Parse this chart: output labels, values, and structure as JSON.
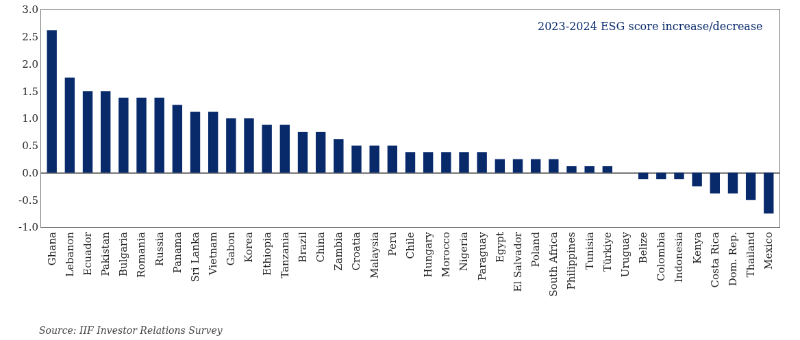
{
  "chart_data": {
    "type": "bar",
    "categories": [
      "Ghana",
      "Lebanon",
      "Ecuador",
      "Pakistan",
      "Bulgaria",
      "Romania",
      "Russia",
      "Panama",
      "Sri Lanka",
      "Vietnam",
      "Gabon",
      "Korea",
      "Ethiopia",
      "Tanzania",
      "Brazil",
      "China",
      "Zambia",
      "Croatia",
      "Malaysia",
      "Peru",
      "Chile",
      "Hungary",
      "Morocco",
      "Nigeria",
      "Paraguay",
      "Egypt",
      "El Salvador",
      "Poland",
      "South Africa",
      "Philippines",
      "Tunisia",
      "Türkiye",
      "Uruguay",
      "Belize",
      "Colombia",
      "Indonesia",
      "Kenya",
      "Costa Rica",
      "Dom. Rep.",
      "Thailand",
      "Mexico"
    ],
    "values": [
      2.62,
      1.75,
      1.5,
      1.5,
      1.38,
      1.38,
      1.38,
      1.25,
      1.12,
      1.12,
      1.0,
      1.0,
      0.88,
      0.88,
      0.75,
      0.75,
      0.62,
      0.5,
      0.5,
      0.5,
      0.38,
      0.38,
      0.38,
      0.38,
      0.38,
      0.25,
      0.25,
      0.25,
      0.25,
      0.12,
      0.12,
      0.12,
      0,
      -0.12,
      -0.12,
      -0.12,
      -0.25,
      -0.38,
      -0.38,
      -0.5,
      -0.75
    ],
    "color": "#082a6b",
    "ylim": [
      -1.0,
      3.0
    ],
    "yticks": [
      {
        "value": -1,
        "label": "-1.0"
      },
      {
        "value": -0.5,
        "label": "-0.5"
      },
      {
        "value": 0,
        "label": "0.0"
      },
      {
        "value": 0.5,
        "label": "0.5"
      },
      {
        "value": 1,
        "label": "1.0"
      },
      {
        "value": 1.5,
        "label": "1.5"
      },
      {
        "value": 2,
        "label": "2.0"
      },
      {
        "value": 2.5,
        "label": "2.5"
      },
      {
        "value": 3,
        "label": "3.0"
      }
    ],
    "annotations": [
      "2023-2024 ESG score increase/decrease",
      "Source: IIF Investor Relations Survey"
    ]
  }
}
